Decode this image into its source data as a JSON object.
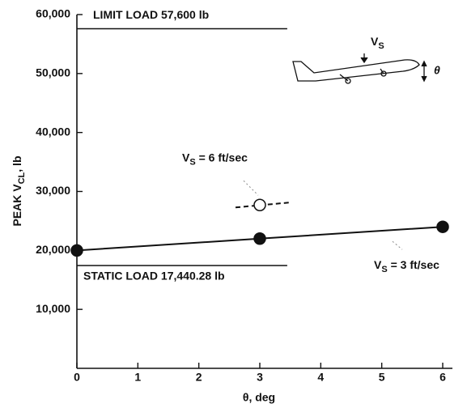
{
  "chart_data": {
    "type": "line",
    "xlabel": "θ, deg",
    "ylabel": {
      "base": "PEAK V",
      "sub": "CL",
      "rest": ", lb"
    },
    "xlim": [
      0,
      6
    ],
    "xticks": [
      0,
      1,
      2,
      3,
      4,
      5,
      6
    ],
    "ylim": [
      0,
      60000
    ],
    "yticks": [
      {
        "value": 10000,
        "label": "10,000"
      },
      {
        "value": 20000,
        "label": "20,000"
      },
      {
        "value": 30000,
        "label": "30,000"
      },
      {
        "value": 40000,
        "label": "40,000"
      },
      {
        "value": 50000,
        "label": "50,000"
      },
      {
        "value": 60000,
        "label": "60,000"
      }
    ],
    "series": [
      {
        "label": {
          "base": "V",
          "sub": "S",
          "rest": " = 3 ft/sec"
        },
        "color": "#111111",
        "marker": "filled",
        "line": "solid",
        "x": [
          0,
          3,
          6
        ],
        "values": [
          20000,
          22000,
          24000
        ]
      },
      {
        "label": {
          "base": "V",
          "sub": "S",
          "rest": " = 6 ft/sec"
        },
        "color": "#111111",
        "marker": "open",
        "line": "dashed",
        "x": [
          3
        ],
        "values": [
          27700
        ]
      }
    ],
    "reference_lines": [
      {
        "label": "LIMIT LOAD 57,600 lb",
        "value": 57600
      },
      {
        "label": "STATIC LOAD 17,440.28 lb",
        "value": 17440.28
      }
    ],
    "icon_labels": {
      "velocity": {
        "base": "V",
        "sub": "S"
      },
      "angle": "θ"
    }
  }
}
